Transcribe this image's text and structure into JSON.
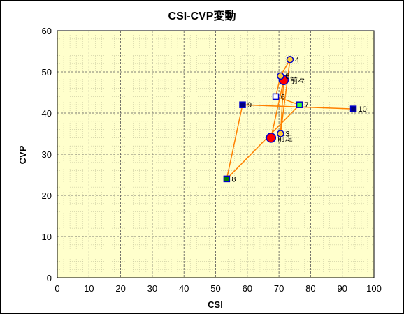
{
  "chart_data": {
    "type": "scatter",
    "title": "CSI-CVP変動",
    "xlabel": "CSI",
    "ylabel": "CVP",
    "xlim": [
      0,
      100
    ],
    "ylim": [
      0,
      60
    ],
    "x_ticks": [
      "0",
      "10",
      "20",
      "30",
      "40",
      "50",
      "60",
      "70",
      "80",
      "90",
      "100"
    ],
    "y_ticks": [
      "0",
      "10",
      "20",
      "30",
      "40",
      "50",
      "60"
    ],
    "grid": "dashed",
    "background": "#ffffcc",
    "line_color": "#ff8000",
    "points": [
      {
        "label": "前走",
        "x": 67.5,
        "y": 34,
        "marker": "circle",
        "size": "large",
        "fill": "#ff0000",
        "stroke": "#0000cc"
      },
      {
        "label": "前々",
        "x": 71.5,
        "y": 48,
        "marker": "circle",
        "size": "large",
        "fill": "#ff0000",
        "stroke": "#0000cc"
      },
      {
        "label": "3",
        "x": 70.5,
        "y": 35,
        "marker": "circle",
        "size": "small",
        "fill": "#ffcc33",
        "stroke": "#0000cc"
      },
      {
        "label": "4",
        "x": 73.5,
        "y": 53,
        "marker": "circle",
        "size": "small",
        "fill": "#ffcc33",
        "stroke": "#0000cc"
      },
      {
        "label": "5",
        "x": 70.5,
        "y": 49,
        "marker": "circle",
        "size": "small",
        "fill": "#ffcc33",
        "stroke": "#0000cc"
      },
      {
        "label": "6",
        "x": 69.0,
        "y": 44,
        "marker": "square",
        "size": "small",
        "fill": "#ffffff",
        "stroke": "#0000cc"
      },
      {
        "label": "7",
        "x": 76.5,
        "y": 42,
        "marker": "square",
        "size": "small",
        "fill": "#33ff33",
        "stroke": "#0000cc"
      },
      {
        "label": "8",
        "x": 53.5,
        "y": 24,
        "marker": "square",
        "size": "small",
        "fill": "#008000",
        "stroke": "#0000cc"
      },
      {
        "label": "9",
        "x": 58.5,
        "y": 42,
        "marker": "square",
        "size": "small",
        "fill": "#000080",
        "stroke": "#0000cc"
      },
      {
        "label": "10",
        "x": 93.5,
        "y": 41,
        "marker": "square",
        "size": "small",
        "fill": "#000080",
        "stroke": "#0000cc"
      }
    ]
  }
}
